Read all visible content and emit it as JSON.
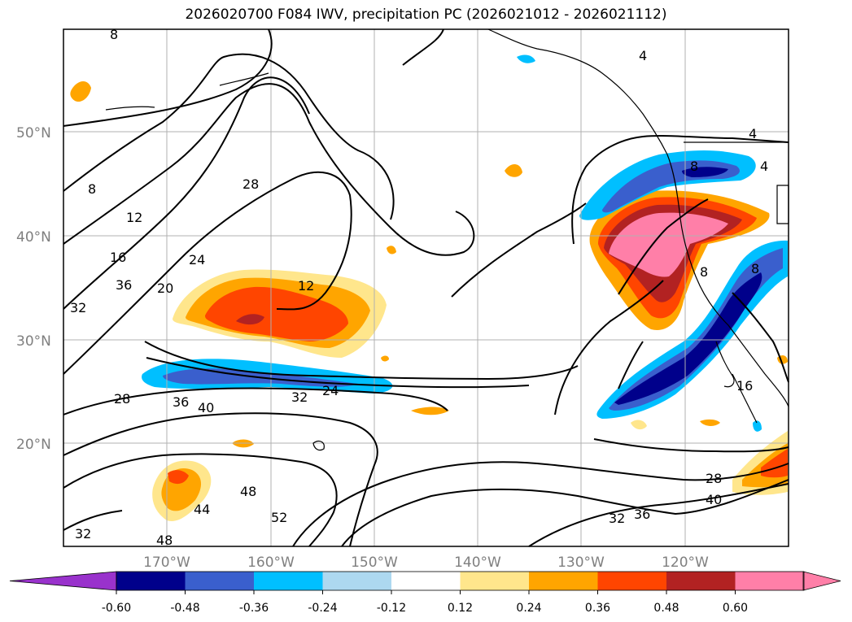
{
  "title": "2026020700 F084 IWV, precipitation PC (2026021012 - 2026021112)",
  "lat_labels": [
    "50°N",
    "40°N",
    "30°N",
    "20°N"
  ],
  "lon_labels": [
    "170°W",
    "160°W",
    "150°W",
    "140°W",
    "130°W",
    "120°W"
  ],
  "colorbar": {
    "colors": [
      "#9932cc",
      "#00008b",
      "#3a5fcd",
      "#00bfff",
      "#add8f0",
      "#ffffff",
      "#ffe68c",
      "#ffa500",
      "#ff4500",
      "#b22222",
      "#ff7fa8",
      "#ff7fa8"
    ],
    "tick_labels": [
      "-0.60",
      "-0.48",
      "-0.36",
      "-0.24",
      "-0.12",
      "0.12",
      "0.24",
      "0.36",
      "0.48",
      "0.60"
    ]
  },
  "contour_labels": [
    "8",
    "8",
    "12",
    "16",
    "20",
    "24",
    "28",
    "36",
    "32",
    "12",
    "28",
    "36",
    "40",
    "32",
    "24",
    "48",
    "44",
    "52",
    "32",
    "48",
    "28",
    "40",
    "32",
    "36",
    "16",
    "4",
    "4",
    "8",
    "4",
    "8",
    "8"
  ]
}
